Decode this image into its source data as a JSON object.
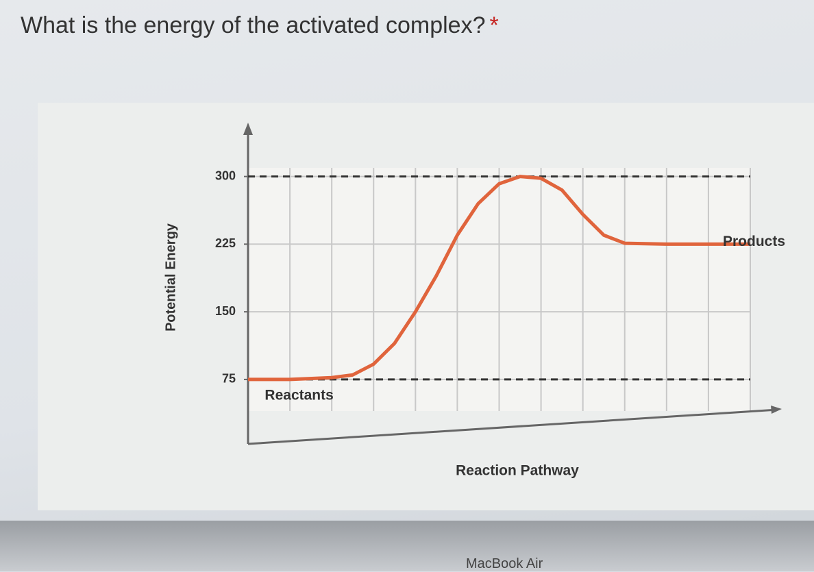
{
  "question": {
    "text": "What is the energy of the activated complex?",
    "required_marker": "*"
  },
  "chart_data": {
    "type": "line",
    "y_label": "Potential Energy",
    "x_label": "Reaction Pathway",
    "x": [
      0,
      1,
      2,
      2.5,
      3,
      3.5,
      4,
      4.5,
      5,
      5.5,
      6,
      6.5,
      7,
      7.5,
      8,
      8.5,
      9,
      10,
      11,
      12
    ],
    "series": [
      {
        "name": "Energy",
        "color": "#e0643c",
        "values": [
          75,
          75,
          77,
          80,
          92,
          115,
          150,
          190,
          235,
          270,
          292,
          300,
          298,
          285,
          258,
          235,
          226,
          225,
          225,
          225
        ]
      }
    ],
    "xlim": [
      0,
      12
    ],
    "ylim": [
      40,
      340
    ],
    "yticks": [
      75,
      150,
      225,
      300
    ],
    "grid": true,
    "reference_lines": [
      300,
      75
    ],
    "annotations": [
      {
        "text": "Reactants",
        "x": 0.4,
        "y": 75
      },
      {
        "text": "Products",
        "x": 12,
        "y": 225
      }
    ]
  },
  "footer": {
    "text": "MacBook Air"
  }
}
